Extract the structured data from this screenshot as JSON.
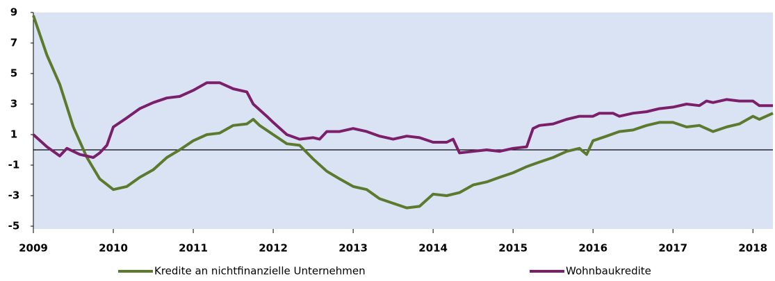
{
  "chart_data": {
    "type": "line",
    "xlim": [
      2009,
      2018.25
    ],
    "xticks": [
      2009,
      2010,
      2011,
      2012,
      2013,
      2014,
      2015,
      2016,
      2017,
      2018
    ],
    "ylim": [
      -5,
      9
    ],
    "yticks": [
      9,
      7,
      5,
      3,
      1,
      -1,
      -3,
      -5
    ],
    "grid": false,
    "series": [
      {
        "name": "Kredite an nichtfinanzielle Unternehmen",
        "color": "#5b7a2e",
        "x": [
          2009.0,
          2009.17,
          2009.33,
          2009.5,
          2009.67,
          2009.83,
          2010.0,
          2010.17,
          2010.33,
          2010.5,
          2010.67,
          2010.83,
          2011.0,
          2011.17,
          2011.33,
          2011.5,
          2011.67,
          2011.75,
          2011.83,
          2012.0,
          2012.17,
          2012.33,
          2012.5,
          2012.67,
          2012.83,
          2013.0,
          2013.17,
          2013.33,
          2013.5,
          2013.67,
          2013.83,
          2014.0,
          2014.17,
          2014.33,
          2014.5,
          2014.67,
          2014.83,
          2015.0,
          2015.17,
          2015.33,
          2015.5,
          2015.67,
          2015.83,
          2015.92,
          2016.0,
          2016.17,
          2016.33,
          2016.5,
          2016.67,
          2016.83,
          2017.0,
          2017.17,
          2017.33,
          2017.5,
          2017.67,
          2017.83,
          2018.0,
          2018.08,
          2018.25
        ],
        "values": [
          8.8,
          6.2,
          4.3,
          1.5,
          -0.5,
          -1.9,
          -2.6,
          -2.4,
          -1.8,
          -1.3,
          -0.5,
          0.0,
          0.6,
          1.0,
          1.1,
          1.6,
          1.7,
          2.0,
          1.6,
          1.0,
          0.4,
          0.3,
          -0.6,
          -1.4,
          -1.9,
          -2.4,
          -2.6,
          -3.2,
          -3.5,
          -3.8,
          -3.7,
          -2.9,
          -3.0,
          -2.8,
          -2.3,
          -2.1,
          -1.8,
          -1.5,
          -1.1,
          -0.8,
          -0.5,
          -0.1,
          0.1,
          -0.3,
          0.6,
          0.9,
          1.2,
          1.3,
          1.6,
          1.8,
          1.8,
          1.5,
          1.6,
          1.2,
          1.5,
          1.7,
          2.2,
          2.0,
          2.4
        ]
      },
      {
        "name": "Wohnbaukredite",
        "color": "#7b1f6a",
        "x": [
          2009.0,
          2009.17,
          2009.33,
          2009.42,
          2009.58,
          2009.75,
          2009.83,
          2009.92,
          2010.0,
          2010.17,
          2010.33,
          2010.5,
          2010.67,
          2010.83,
          2011.0,
          2011.17,
          2011.33,
          2011.5,
          2011.67,
          2011.75,
          2011.92,
          2012.0,
          2012.17,
          2012.33,
          2012.5,
          2012.58,
          2012.67,
          2012.83,
          2013.0,
          2013.17,
          2013.33,
          2013.5,
          2013.67,
          2013.83,
          2014.0,
          2014.17,
          2014.25,
          2014.33,
          2014.5,
          2014.67,
          2014.83,
          2015.0,
          2015.17,
          2015.25,
          2015.33,
          2015.5,
          2015.67,
          2015.83,
          2016.0,
          2016.08,
          2016.25,
          2016.33,
          2016.5,
          2016.67,
          2016.83,
          2017.0,
          2017.17,
          2017.33,
          2017.42,
          2017.5,
          2017.67,
          2017.83,
          2018.0,
          2018.08,
          2018.25
        ],
        "values": [
          1.0,
          0.2,
          -0.4,
          0.1,
          -0.3,
          -0.5,
          -0.2,
          0.3,
          1.5,
          2.1,
          2.7,
          3.1,
          3.4,
          3.5,
          3.9,
          4.4,
          4.4,
          4.0,
          3.8,
          3.0,
          2.2,
          1.8,
          1.0,
          0.7,
          0.8,
          0.7,
          1.2,
          1.2,
          1.4,
          1.2,
          0.9,
          0.7,
          0.9,
          0.8,
          0.5,
          0.5,
          0.7,
          -0.2,
          -0.1,
          0.0,
          -0.1,
          0.1,
          0.2,
          1.4,
          1.6,
          1.7,
          2.0,
          2.2,
          2.2,
          2.4,
          2.4,
          2.2,
          2.4,
          2.5,
          2.7,
          2.8,
          3.0,
          2.9,
          3.2,
          3.1,
          3.3,
          3.2,
          3.2,
          2.9,
          2.9
        ]
      }
    ]
  }
}
